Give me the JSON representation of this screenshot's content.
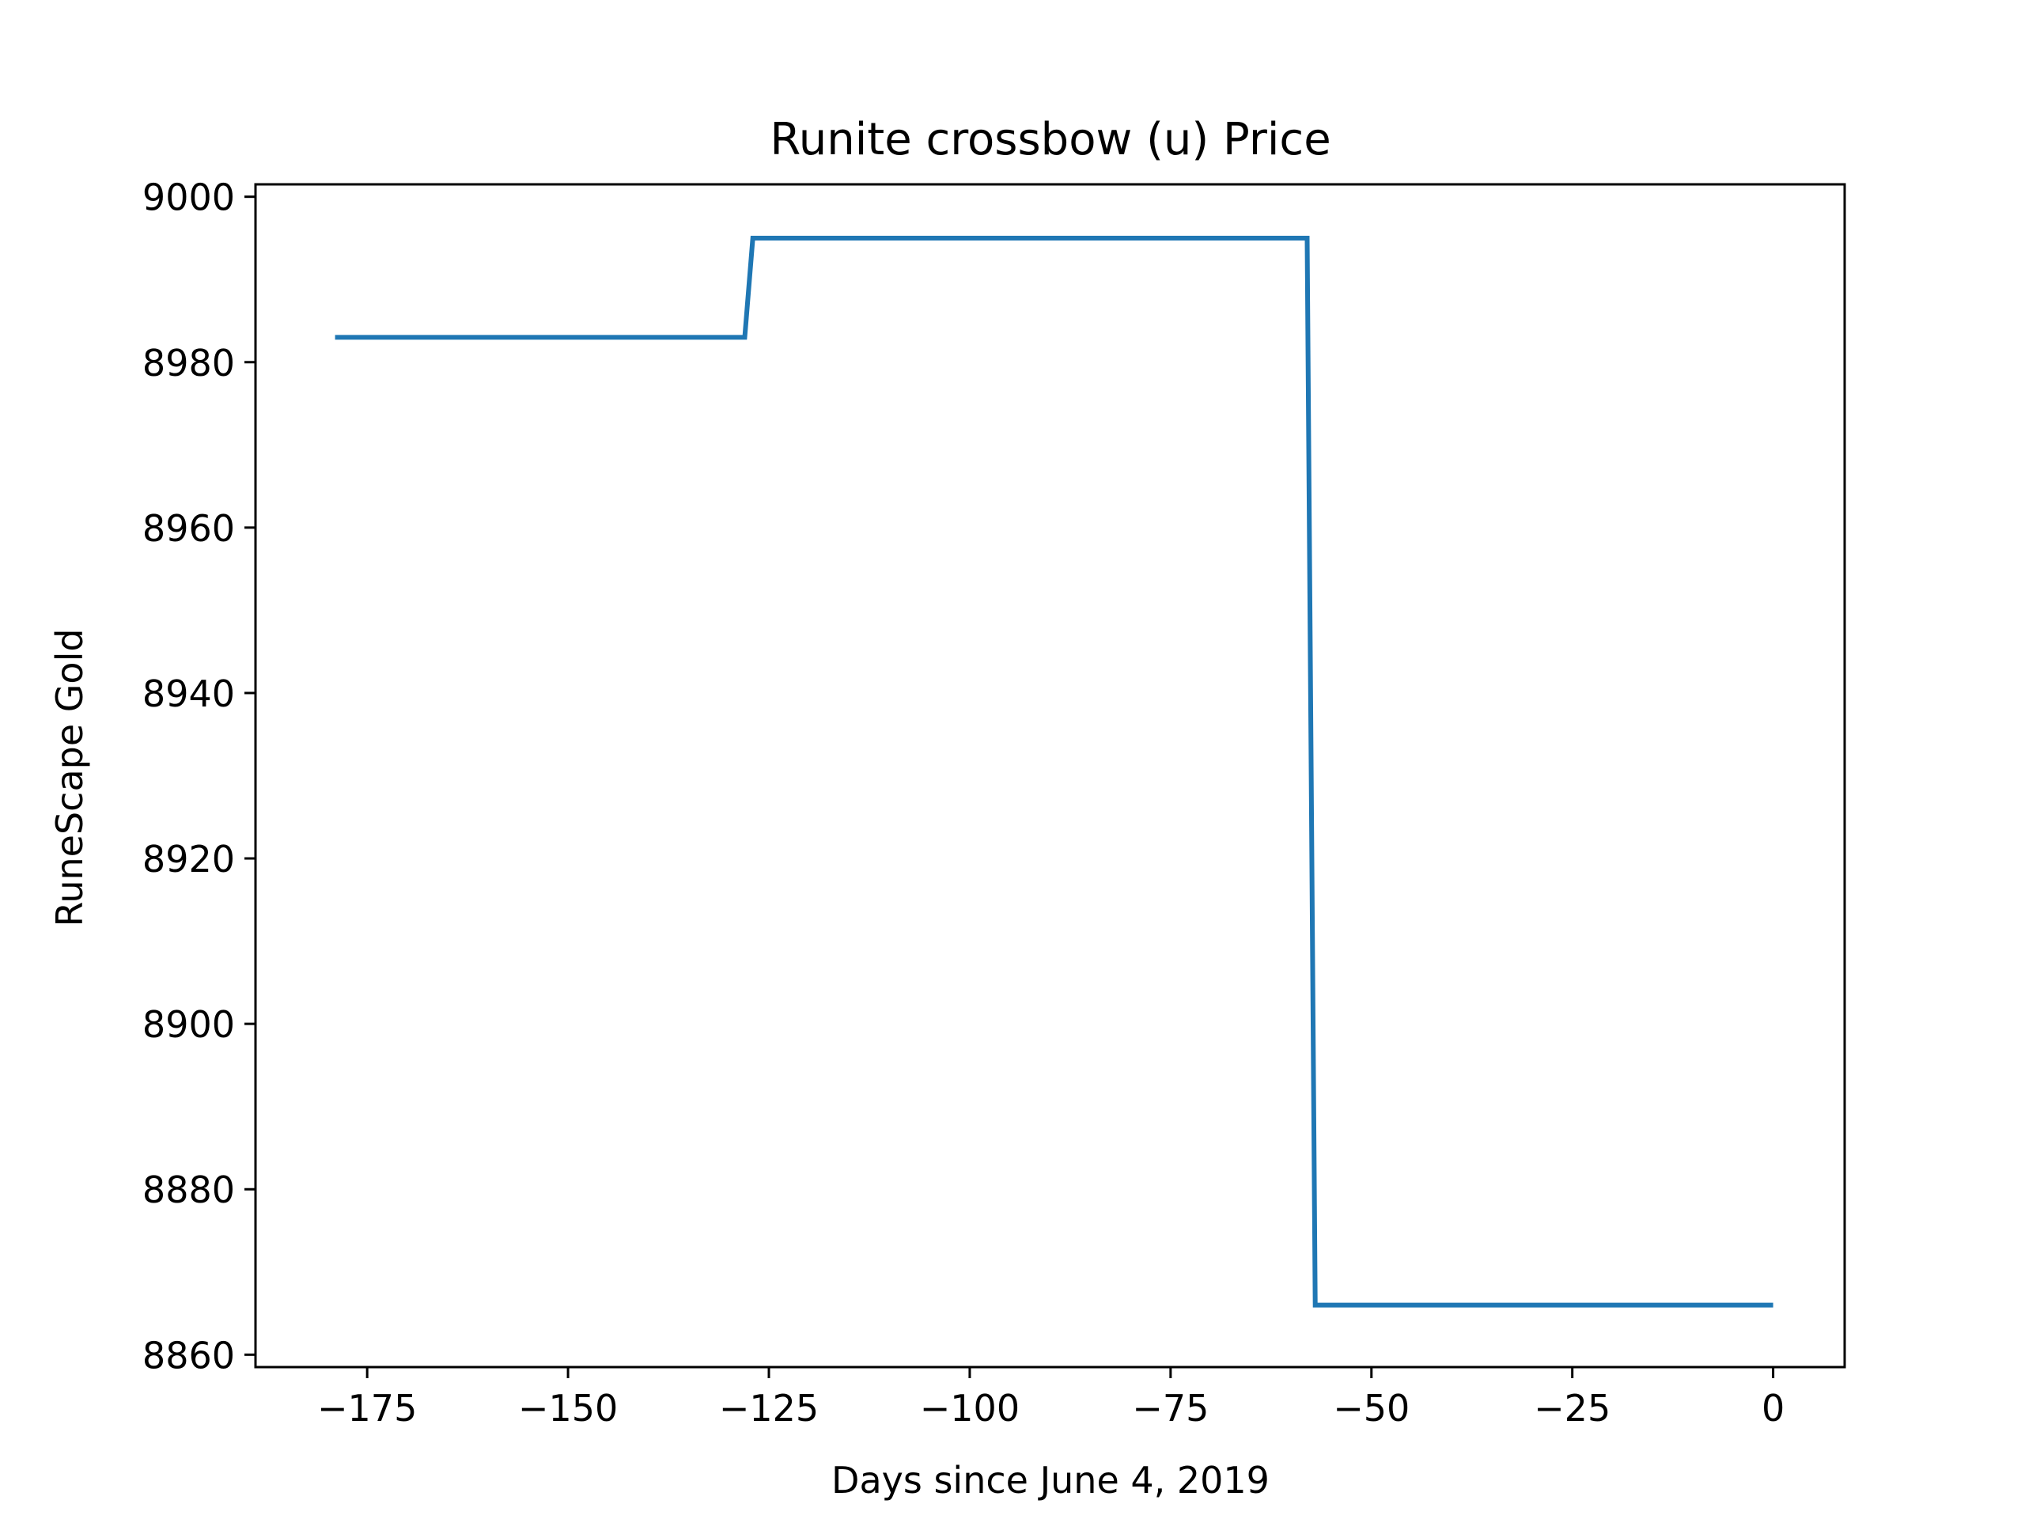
{
  "chart_data": {
    "type": "line",
    "title": "Runite crossbow (u) Price",
    "xlabel": "Days since June 4, 2019",
    "ylabel": "RuneScape Gold",
    "xlim": [
      -188.9,
      8.9
    ],
    "ylim": [
      8858.5,
      9001.5
    ],
    "xticks": [
      -175,
      -150,
      -125,
      -100,
      -75,
      -50,
      -25,
      0
    ],
    "xtick_labels": [
      "−175",
      "−150",
      "−125",
      "−100",
      "−75",
      "−50",
      "−25",
      "0"
    ],
    "yticks": [
      8860,
      8880,
      8900,
      8920,
      8940,
      8960,
      8980,
      9000
    ],
    "ytick_labels": [
      "8860",
      "8880",
      "8900",
      "8920",
      "8940",
      "8960",
      "8980",
      "9000"
    ],
    "grid": false,
    "series": [
      {
        "color": "#1f77b4",
        "x": [
          -179,
          -128,
          -127,
          -58,
          -57,
          0
        ],
        "y": [
          8983,
          8983,
          8995,
          8995,
          8866,
          8866
        ]
      }
    ]
  }
}
